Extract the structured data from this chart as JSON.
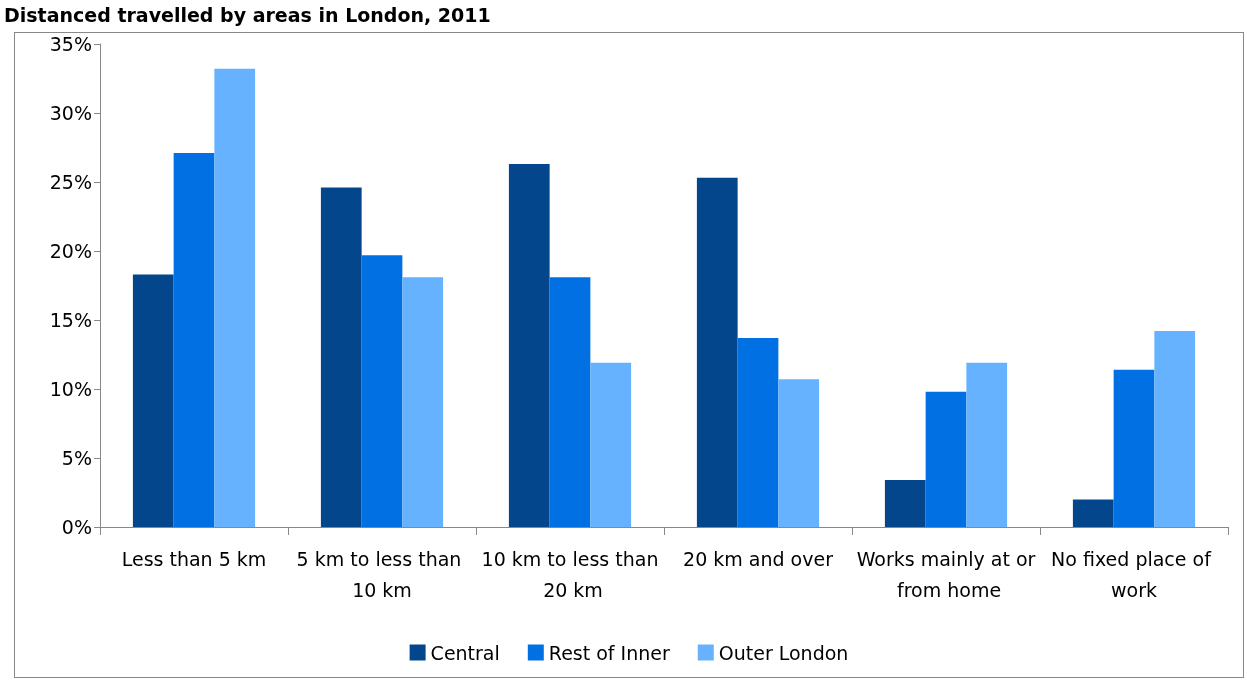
{
  "chart_data": {
    "type": "bar",
    "title": "Distanced travelled by areas in London, 2011",
    "categories": [
      "Less than 5 km",
      "5 km to less than 10 km",
      "10 km to less than 20 km",
      "20 km and over",
      "Works mainly at or from home",
      "No fixed place of work"
    ],
    "series": [
      {
        "name": "Central",
        "color": "#03468c",
        "values": [
          18.3,
          24.6,
          26.3,
          25.3,
          3.4,
          2.0
        ]
      },
      {
        "name": "Rest of Inner",
        "color": "#0070e2",
        "values": [
          27.1,
          19.7,
          18.1,
          13.7,
          9.8,
          11.4
        ]
      },
      {
        "name": "Outer London",
        "color": "#66b2ff",
        "values": [
          33.2,
          18.1,
          11.9,
          10.7,
          11.9,
          14.2
        ]
      }
    ],
    "ylim": [
      0,
      35
    ],
    "yticks": [
      {
        "value": 0,
        "label": "0%"
      },
      {
        "value": 5,
        "label": "5%"
      },
      {
        "value": 10,
        "label": "10%"
      },
      {
        "value": 15,
        "label": "15%"
      },
      {
        "value": 20,
        "label": "20%"
      },
      {
        "value": 25,
        "label": "25%"
      },
      {
        "value": 30,
        "label": "30%"
      },
      {
        "value": 35,
        "label": "35%"
      }
    ],
    "grid": false,
    "legend": "bottom"
  }
}
